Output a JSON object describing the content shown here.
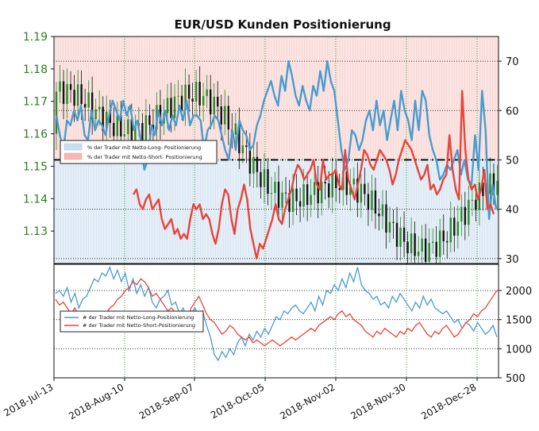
{
  "chart_data": [
    {
      "type": "candlestick+line",
      "title": "EUR/USD Kunden Positionierung",
      "left_axis": {
        "ticks": [
          "1.13",
          "1.14",
          "1.15",
          "1.16",
          "1.17",
          "1.18",
          "1.19"
        ],
        "range": [
          1.12,
          1.19
        ]
      },
      "right_axis": {
        "ticks": [
          "30",
          "40",
          "50",
          "60",
          "70"
        ],
        "range": [
          29,
          75
        ]
      },
      "reference_line": 50,
      "legend": {
        "placement": "upper-left",
        "entries": [
          {
            "label": "% der Trader mit Netto-Long- Positionierung",
            "color": "#c9dff0"
          },
          {
            "label": "% der Trader mit Netto-Short- Positionierung",
            "color": "#f5b7b1"
          }
        ]
      },
      "series": [
        {
          "name": "% der Trader mit Netto-Long- Positionierung",
          "color": "#4a9bd0",
          "values": [
            59,
            55,
            52,
            58,
            57,
            60,
            58,
            61,
            55,
            54,
            60,
            56,
            58,
            57,
            55,
            59,
            62,
            60,
            58,
            62,
            59,
            61,
            56,
            58,
            54,
            48,
            50,
            57,
            55,
            60,
            57,
            60,
            56,
            59,
            57,
            61,
            58,
            62,
            57,
            59,
            59,
            58,
            52,
            56,
            57,
            59,
            58,
            55,
            52,
            50,
            56,
            52,
            58,
            56,
            55,
            52,
            53,
            57,
            59,
            62,
            64,
            66,
            63,
            61,
            67,
            64,
            70,
            67,
            63,
            61,
            65,
            62,
            60,
            65,
            63,
            68,
            64,
            70,
            66,
            64,
            58,
            52,
            48,
            50,
            56,
            55,
            52,
            54,
            58,
            60,
            56,
            62,
            57,
            60,
            54,
            58,
            62,
            56,
            64,
            60,
            58,
            54,
            62,
            56,
            64,
            62,
            55,
            52,
            50,
            46,
            47,
            49,
            48,
            50,
            52,
            47,
            50,
            46,
            45,
            55,
            48,
            64,
            56,
            38,
            45,
            40
          ],
          "negative_values": [
            51,
            50,
            49,
            49,
            48,
            50,
            49,
            49,
            48,
            46,
            44,
            45,
            42,
            40,
            41,
            43,
            40,
            39,
            38,
            40,
            42,
            40,
            38,
            36,
            38,
            35,
            36,
            40,
            41,
            38,
            36,
            40,
            42,
            45,
            42,
            38,
            40,
            35,
            33,
            30,
            33,
            32,
            34,
            36,
            38,
            40,
            38,
            37,
            40,
            42,
            44,
            45,
            47,
            49,
            50,
            48,
            46,
            48
          ]
        },
        {
          "name": "% der Trader mit Netto-Short- Positionierung",
          "color": "#e8443a",
          "values": [
            43,
            44,
            41,
            40,
            42,
            43,
            40,
            41,
            42,
            38,
            36,
            37,
            38,
            35,
            36,
            34,
            35,
            34,
            38,
            41,
            40,
            41,
            38,
            39,
            38,
            35,
            33,
            36,
            41,
            44,
            43,
            38,
            35,
            40,
            42,
            45,
            42,
            36,
            33,
            30,
            33,
            32,
            34,
            36,
            38,
            41,
            38,
            37,
            40,
            42,
            44,
            47,
            49,
            48,
            46,
            47,
            48,
            50,
            45,
            44,
            50,
            46,
            47,
            47,
            48,
            45,
            44,
            52,
            46,
            44,
            42,
            45,
            48,
            52,
            51,
            49,
            48,
            50,
            52,
            51,
            50,
            48,
            45,
            47,
            50,
            52,
            54,
            53,
            52,
            50,
            48,
            46,
            47,
            49,
            44,
            45,
            43,
            44,
            46,
            47,
            55,
            48,
            44,
            42,
            64,
            52,
            46,
            44,
            45,
            42,
            44,
            48,
            40,
            41,
            39
          ]
        }
      ],
      "note": "candlesticks show EUR/USD price against the left axis"
    },
    {
      "type": "line",
      "right_axis": {
        "ticks": [
          "500",
          "1000",
          "1500",
          "2000"
        ],
        "range": [
          500,
          2450
        ]
      },
      "x_ticks": [
        "2018-Jul-13",
        "2018-Aug-10",
        "2018-Sep-07",
        "2018-Oct-05",
        "2018-Nov-02",
        "2018-Nov-30",
        "2018-Dec-28"
      ],
      "legend": {
        "placement": "upper-left",
        "entries": [
          {
            "label": "# der Trader mit Netto-Long-Positionierung",
            "color": "#4a9bd0"
          },
          {
            "label": "# der Trader mit Netto-Short-Positionierung",
            "color": "#e8443a"
          }
        ]
      },
      "series": [
        {
          "name": "# der Trader mit Netto-Long-Positionierung",
          "color": "#4a9bd0",
          "values": [
            1950,
            2000,
            1900,
            2050,
            1800,
            1950,
            1700,
            1850,
            1900,
            2050,
            2200,
            2150,
            2300,
            2250,
            2400,
            2200,
            2350,
            2150,
            2300,
            2000,
            2200,
            1950,
            2100,
            1900,
            2050,
            1800,
            1700,
            1850,
            1900,
            2000,
            1750,
            1800,
            1600,
            1700,
            1500,
            1600,
            1700,
            1550,
            1650,
            1400,
            1200,
            900,
            800,
            950,
            850,
            1000,
            900,
            1100,
            1200,
            1050,
            1250,
            1150,
            1300,
            1200,
            1350,
            1250,
            1400,
            1550,
            1500,
            1650,
            1600,
            1700,
            1750,
            1650,
            1600,
            1700,
            1800,
            1650,
            1900,
            1750,
            2000,
            1950,
            2100,
            2000,
            2200,
            2050,
            2300,
            2150,
            2400,
            2100,
            2000,
            1950,
            1850,
            1900,
            1750,
            1800,
            1700,
            1900,
            1800,
            1950,
            1850,
            1750,
            1650,
            1800,
            1700,
            1900,
            1750,
            1850,
            1700,
            1650,
            1600,
            1650,
            1550,
            1450,
            1500,
            1350,
            1450,
            1400,
            1300,
            1450,
            1350,
            1250,
            1300,
            1400,
            1200
          ]
        },
        {
          "name": "# der Trader mit Netto-Short-Positionierung",
          "color": "#e8443a",
          "values": [
            1850,
            1750,
            1800,
            1700,
            1600,
            1700,
            1550,
            1600,
            1500,
            1550,
            1450,
            1500,
            1550,
            1600,
            1700,
            1750,
            1850,
            1900,
            2000,
            2050,
            2150,
            2100,
            2200,
            2150,
            2050,
            1900,
            1950,
            1850,
            1750,
            1650,
            1700,
            1600,
            1550,
            1500,
            1450,
            1700,
            1800,
            1900,
            1750,
            1600,
            1500,
            1450,
            1350,
            1250,
            1300,
            1400,
            1350,
            1250,
            1200,
            1150,
            1200,
            1100,
            1150,
            1100,
            1050,
            1100,
            1150,
            1100,
            1050,
            1100,
            1150,
            1200,
            1150,
            1200,
            1250,
            1300,
            1350,
            1300,
            1400,
            1450,
            1500,
            1550,
            1500,
            1600,
            1650,
            1550,
            1600,
            1500,
            1450,
            1400,
            1300,
            1250,
            1200,
            1300,
            1250,
            1350,
            1300,
            1250,
            1200,
            1300,
            1250,
            1350,
            1300,
            1400,
            1450,
            1350,
            1250,
            1200,
            1300,
            1250,
            1350,
            1400,
            1300,
            1200,
            1250,
            1350,
            1450,
            1500,
            1600,
            1550,
            1650,
            1700,
            1800,
            1900,
            2000
          ]
        }
      ]
    }
  ]
}
